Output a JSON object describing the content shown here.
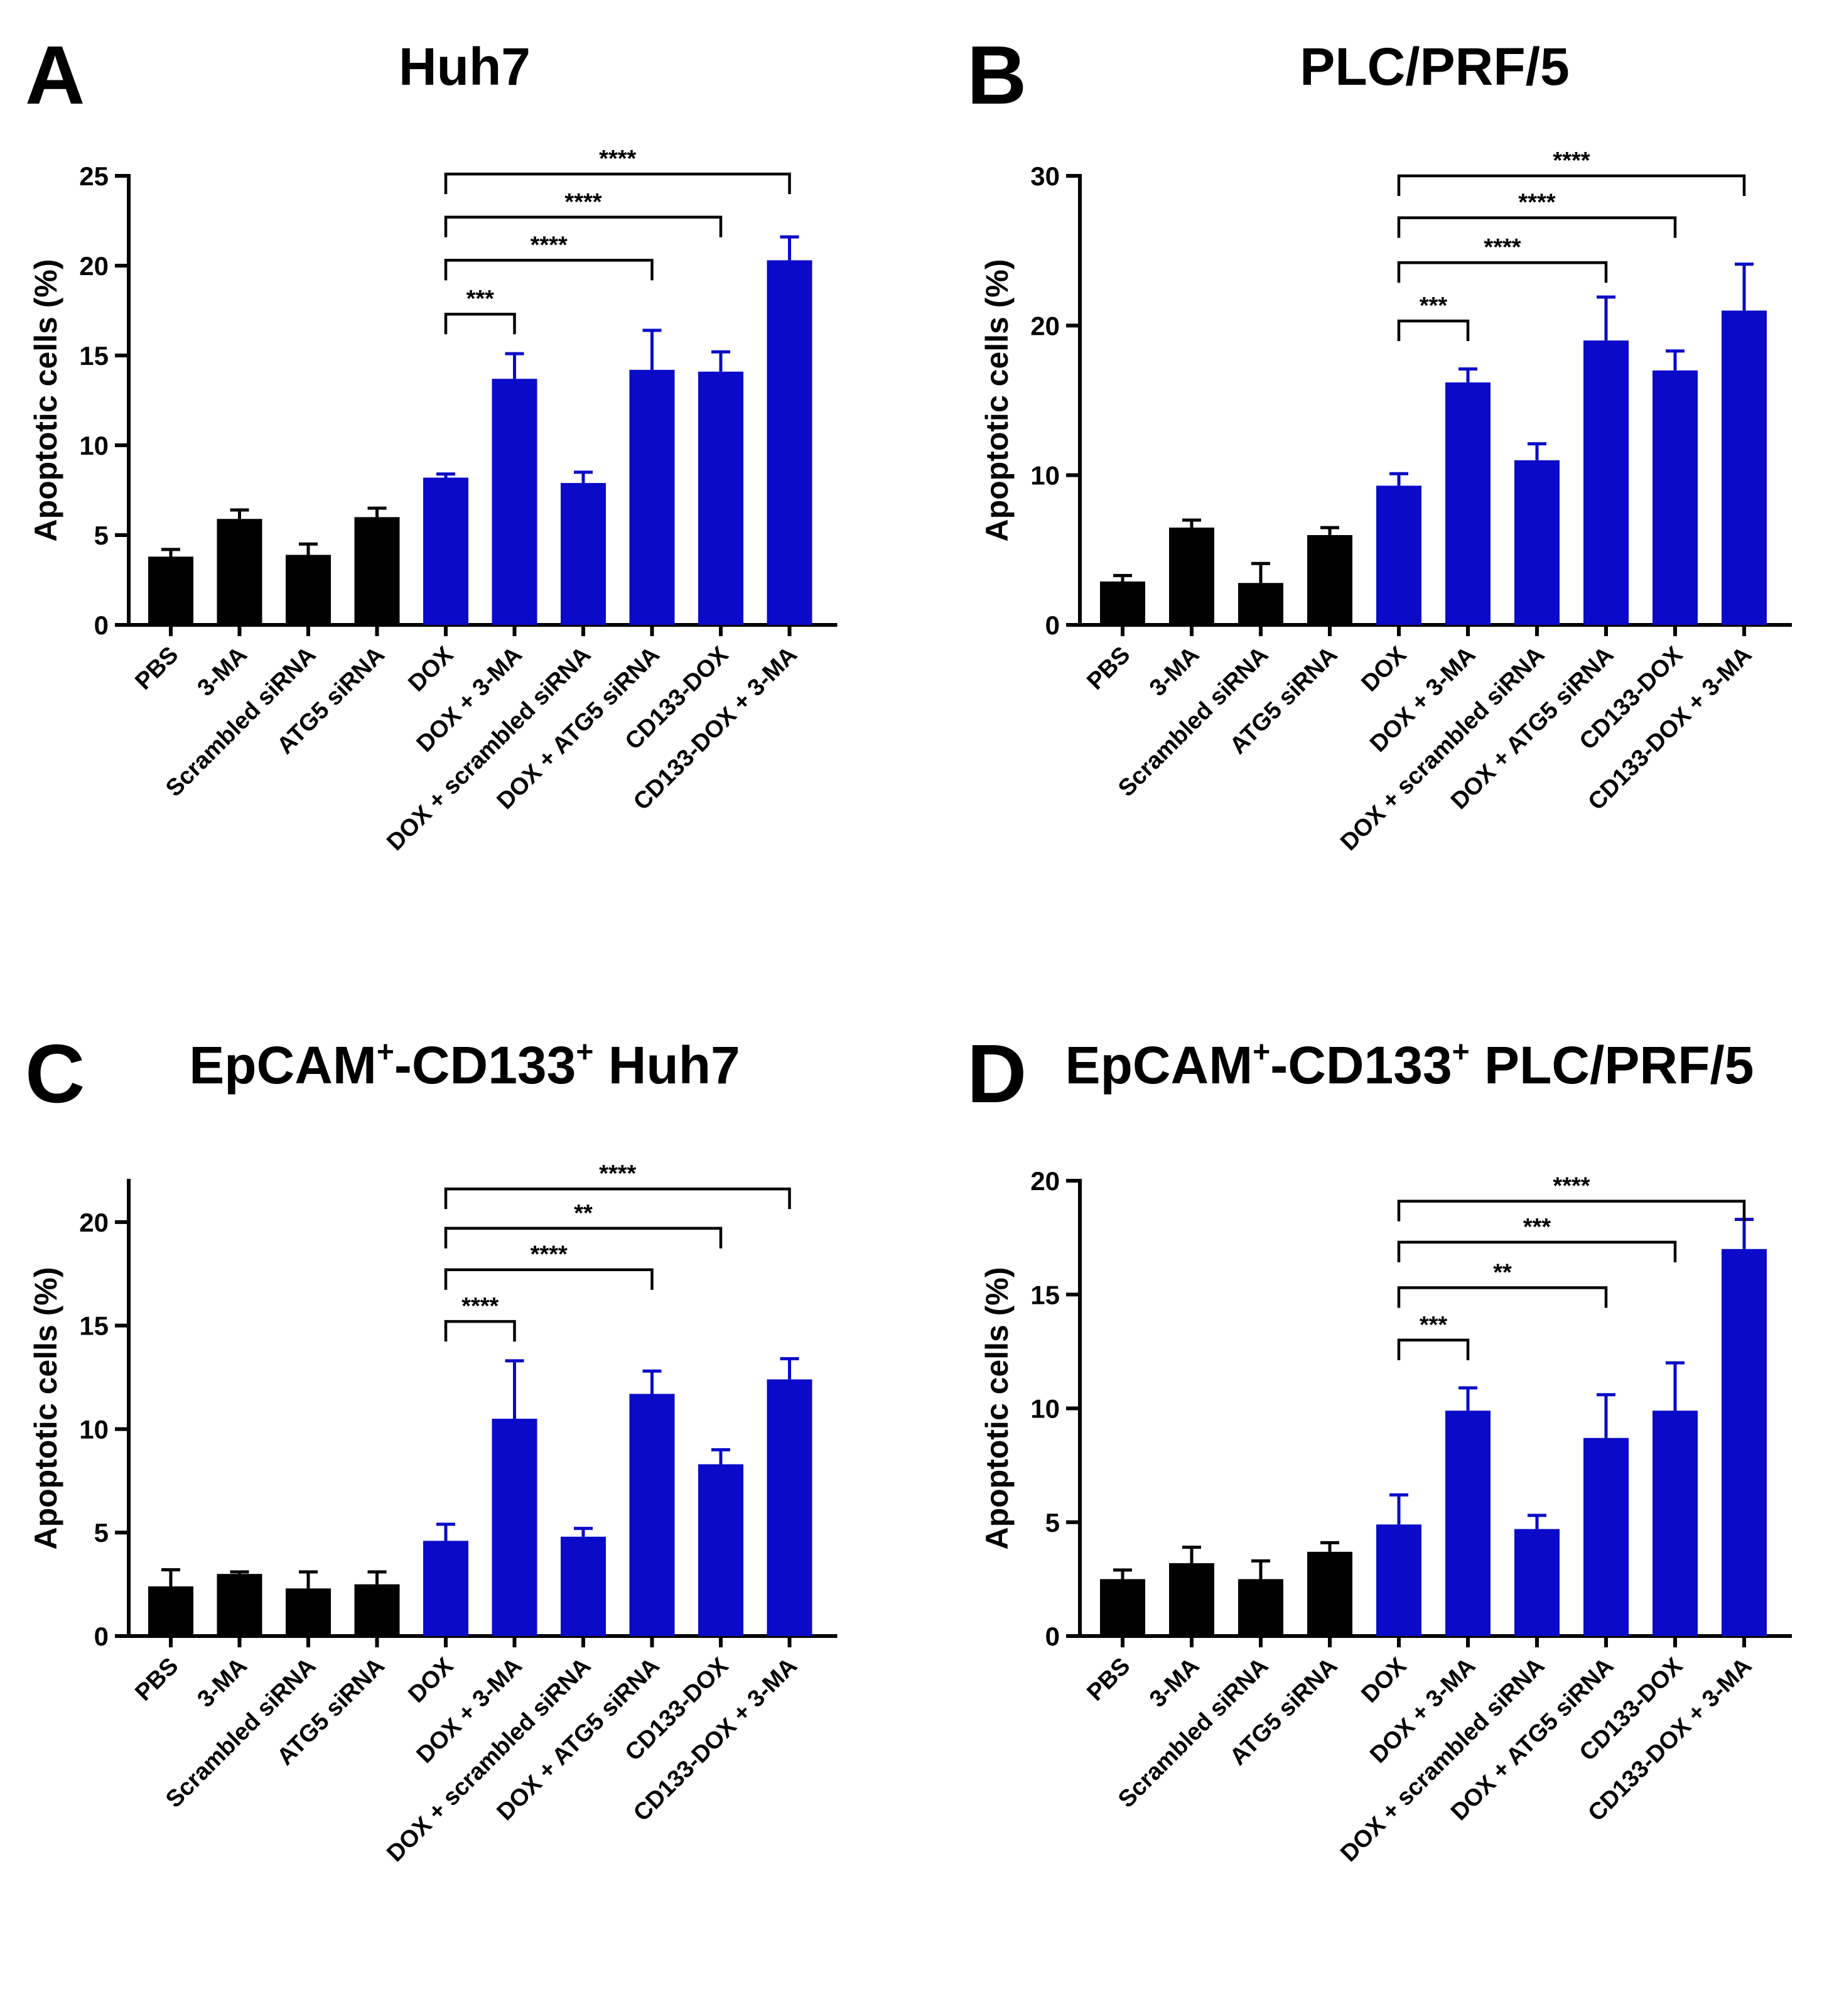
{
  "figure": {
    "categories": [
      "PBS",
      "3-MA",
      "Scrambled siRNA",
      "ATG5 siRNA",
      "DOX",
      "DOX + 3-MA",
      "DOX + scrambled siRNA",
      "DOX + ATG5 siRNA",
      "CD133-DOX",
      "CD133-DOX + 3-MA"
    ],
    "colors": {
      "control": "#000000",
      "treatment": "#0a0ac8"
    }
  },
  "chart_data": [
    {
      "type": "bar",
      "panel": "A",
      "title": "Huh7",
      "title_sup": [],
      "ylabel": "Apoptotic cells (%)",
      "ylim": [
        0,
        25
      ],
      "yticks": [
        0,
        5,
        10,
        15,
        20,
        25
      ],
      "categories": [
        "PBS",
        "3-MA",
        "Scrambled siRNA",
        "ATG5 siRNA",
        "DOX",
        "DOX + 3-MA",
        "DOX + scrambled siRNA",
        "DOX + ATG5 siRNA",
        "CD133-DOX",
        "CD133-DOX + 3-MA"
      ],
      "values": [
        3.8,
        5.9,
        3.9,
        6.0,
        8.2,
        13.7,
        7.9,
        14.2,
        14.1,
        20.3
      ],
      "errors": [
        0.4,
        0.5,
        0.6,
        0.5,
        0.2,
        1.4,
        0.6,
        2.2,
        1.1,
        1.3
      ],
      "colors": [
        "control",
        "control",
        "control",
        "control",
        "treatment",
        "treatment",
        "treatment",
        "treatment",
        "treatment",
        "treatment"
      ],
      "significance": [
        {
          "from": "DOX",
          "to": "DOX + 3-MA",
          "label": "***",
          "y": 17.3
        },
        {
          "from": "DOX",
          "to": "DOX + ATG5 siRNA",
          "label": "****",
          "y": 20.3
        },
        {
          "from": "DOX",
          "to": "CD133-DOX",
          "label": "****",
          "y": 22.7
        },
        {
          "from": "DOX",
          "to": "CD133-DOX + 3-MA",
          "label": "****",
          "y": 25.1
        }
      ]
    },
    {
      "type": "bar",
      "panel": "B",
      "title": "PLC/PRF/5",
      "title_sup": [],
      "ylabel": "Apoptotic cells (%)",
      "ylim": [
        0,
        30
      ],
      "yticks": [
        0,
        10,
        20,
        30
      ],
      "categories": [
        "PBS",
        "3-MA",
        "Scrambled siRNA",
        "ATG5 siRNA",
        "DOX",
        "DOX + 3-MA",
        "DOX + scrambled siRNA",
        "DOX + ATG5 siRNA",
        "CD133-DOX",
        "CD133-DOX + 3-MA"
      ],
      "values": [
        2.9,
        6.5,
        2.8,
        6.0,
        9.3,
        16.2,
        11.0,
        19.0,
        17.0,
        21.0
      ],
      "errors": [
        0.4,
        0.5,
        1.3,
        0.5,
        0.8,
        0.9,
        1.1,
        2.9,
        1.3,
        3.1
      ],
      "colors": [
        "control",
        "control",
        "control",
        "control",
        "treatment",
        "treatment",
        "treatment",
        "treatment",
        "treatment",
        "treatment"
      ],
      "significance": [
        {
          "from": "DOX",
          "to": "DOX + 3-MA",
          "label": "***",
          "y": 20.3
        },
        {
          "from": "DOX",
          "to": "DOX + ATG5 siRNA",
          "label": "****",
          "y": 24.2
        },
        {
          "from": "DOX",
          "to": "CD133-DOX",
          "label": "****",
          "y": 27.2
        },
        {
          "from": "DOX",
          "to": "CD133-DOX + 3-MA",
          "label": "****",
          "y": 30.0
        }
      ]
    },
    {
      "type": "bar",
      "panel": "C",
      "title": "EpCAM-CD133 Huh7",
      "title_parts": [
        "EpCAM",
        "+",
        "-CD133",
        "+",
        " Huh7"
      ],
      "title_sup": [
        1,
        3
      ],
      "ylabel": "Apoptotic cells (%)",
      "ylim": [
        0,
        22
      ],
      "yticks": [
        0,
        5,
        10,
        15,
        20
      ],
      "categories": [
        "PBS",
        "3-MA",
        "Scrambled siRNA",
        "ATG5 siRNA",
        "DOX",
        "DOX + 3-MA",
        "DOX + scrambled siRNA",
        "DOX + ATG5 siRNA",
        "CD133-DOX",
        "CD133-DOX + 3-MA"
      ],
      "values": [
        2.4,
        3.0,
        2.3,
        2.5,
        4.6,
        10.5,
        4.8,
        11.7,
        8.3,
        12.4
      ],
      "errors": [
        0.8,
        0.1,
        0.8,
        0.6,
        0.8,
        2.8,
        0.4,
        1.1,
        0.7,
        1.0
      ],
      "colors": [
        "control",
        "control",
        "control",
        "control",
        "treatment",
        "treatment",
        "treatment",
        "treatment",
        "treatment",
        "treatment"
      ],
      "significance": [
        {
          "from": "DOX",
          "to": "DOX + 3-MA",
          "label": "****",
          "y": 15.2
        },
        {
          "from": "DOX",
          "to": "DOX + ATG5 siRNA",
          "label": "****",
          "y": 17.7
        },
        {
          "from": "DOX",
          "to": "CD133-DOX",
          "label": "**",
          "y": 19.7
        },
        {
          "from": "DOX",
          "to": "CD133-DOX + 3-MA",
          "label": "****",
          "y": 21.6
        }
      ]
    },
    {
      "type": "bar",
      "panel": "D",
      "title": "EpCAM-CD133 PLC/PRF/5",
      "title_parts": [
        "EpCAM",
        "+",
        "-CD133",
        "+",
        " PLC/PRF/5"
      ],
      "title_sup": [
        1,
        3
      ],
      "ylabel": "Apoptotic cells (%)",
      "ylim": [
        0,
        20
      ],
      "yticks": [
        0,
        5,
        10,
        15,
        20
      ],
      "categories": [
        "PBS",
        "3-MA",
        "Scrambled siRNA",
        "ATG5 siRNA",
        "DOX",
        "DOX + 3-MA",
        "DOX + scrambled siRNA",
        "DOX + ATG5 siRNA",
        "CD133-DOX",
        "CD133-DOX + 3-MA"
      ],
      "values": [
        2.5,
        3.2,
        2.5,
        3.7,
        4.9,
        9.9,
        4.7,
        8.7,
        9.9,
        17.0
      ],
      "errors": [
        0.4,
        0.7,
        0.8,
        0.4,
        1.3,
        1.0,
        0.6,
        1.9,
        2.1,
        1.3
      ],
      "colors": [
        "control",
        "control",
        "control",
        "control",
        "treatment",
        "treatment",
        "treatment",
        "treatment",
        "treatment",
        "treatment"
      ],
      "significance": [
        {
          "from": "DOX",
          "to": "DOX + 3-MA",
          "label": "***",
          "y": 13.0
        },
        {
          "from": "DOX",
          "to": "DOX + ATG5 siRNA",
          "label": "**",
          "y": 15.3
        },
        {
          "from": "DOX",
          "to": "CD133-DOX",
          "label": "***",
          "y": 17.3
        },
        {
          "from": "DOX",
          "to": "CD133-DOX + 3-MA",
          "label": "****",
          "y": 19.1
        }
      ]
    }
  ]
}
